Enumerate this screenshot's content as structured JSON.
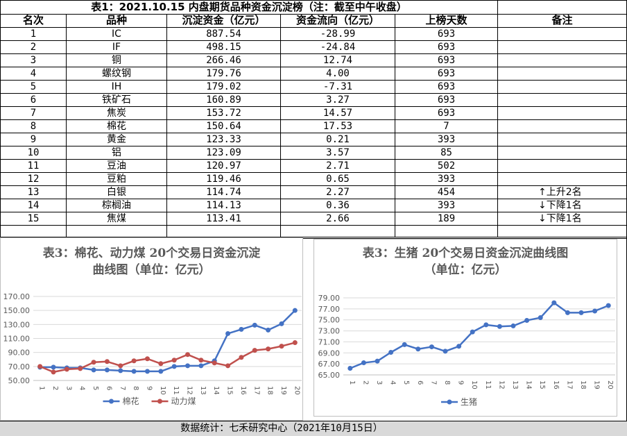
{
  "table": {
    "title": "表1：2021.10.15 内盘期货品种资金沉淀榜（注：截至中午收盘）",
    "headers": [
      "名次",
      "品种",
      "沉淀资金（亿元）",
      "资金流向（亿元）",
      "上榜天数",
      "备注"
    ],
    "rows": [
      {
        "rank": "1",
        "name": "IC",
        "fund": "887.54",
        "flow": "-28.99",
        "days": "693",
        "note": ""
      },
      {
        "rank": "2",
        "name": "IF",
        "fund": "498.15",
        "flow": "-24.84",
        "days": "693",
        "note": ""
      },
      {
        "rank": "3",
        "name": "铜",
        "fund": "266.46",
        "flow": "12.74",
        "days": "693",
        "note": ""
      },
      {
        "rank": "4",
        "name": "螺纹钢",
        "fund": "179.76",
        "flow": "4.00",
        "days": "693",
        "note": ""
      },
      {
        "rank": "5",
        "name": "IH",
        "fund": "179.02",
        "flow": "-7.31",
        "days": "693",
        "note": ""
      },
      {
        "rank": "6",
        "name": "铁矿石",
        "fund": "160.89",
        "flow": "3.27",
        "days": "693",
        "note": ""
      },
      {
        "rank": "7",
        "name": "焦炭",
        "fund": "153.72",
        "flow": "14.57",
        "days": "693",
        "note": ""
      },
      {
        "rank": "8",
        "name": "棉花",
        "fund": "150.64",
        "flow": "17.53",
        "days": "7",
        "note": ""
      },
      {
        "rank": "9",
        "name": "黄金",
        "fund": "123.33",
        "flow": "0.21",
        "days": "393",
        "note": ""
      },
      {
        "rank": "10",
        "name": "铝",
        "fund": "123.09",
        "flow": "3.57",
        "days": "85",
        "note": ""
      },
      {
        "rank": "11",
        "name": "豆油",
        "fund": "120.97",
        "flow": "2.71",
        "days": "502",
        "note": ""
      },
      {
        "rank": "12",
        "name": "豆粕",
        "fund": "119.46",
        "flow": "0.65",
        "days": "393",
        "note": ""
      },
      {
        "rank": "13",
        "name": "白银",
        "fund": "114.74",
        "flow": "2.27",
        "days": "454",
        "note": "上升2名",
        "arrow": "↑"
      },
      {
        "rank": "14",
        "name": "棕榈油",
        "fund": "114.13",
        "flow": "0.36",
        "days": "393",
        "note": "下降1名",
        "arrow": "↓"
      },
      {
        "rank": "15",
        "name": "焦煤",
        "fund": "113.41",
        "flow": "2.66",
        "days": "189",
        "note": "下降1名",
        "arrow": "↓"
      }
    ]
  },
  "chart_data": [
    {
      "type": "line",
      "title_line1": "表3：棉花、动力煤 20个交易日资金沉淀",
      "title_line2": "曲线图（单位：亿元）",
      "x": [
        "1",
        "2",
        "3",
        "4",
        "5",
        "6",
        "7",
        "8",
        "9",
        "10",
        "11",
        "12",
        "13",
        "14",
        "15",
        "16",
        "17",
        "18",
        "19",
        "20"
      ],
      "y_ticks": [
        "50.00",
        "70.00",
        "90.00",
        "110.00",
        "130.00",
        "150.00",
        "170.00"
      ],
      "ylim": [
        50,
        170
      ],
      "grid": true,
      "legend_position": "bottom",
      "series": [
        {
          "name": "棉花",
          "color": "#4472c4",
          "values": [
            69,
            69,
            68,
            68,
            65,
            65,
            64,
            63,
            63,
            63,
            70,
            71,
            71,
            78,
            117,
            123,
            129,
            122,
            131,
            150
          ]
        },
        {
          "name": "动力煤",
          "color": "#c0504d",
          "values": [
            70,
            62,
            66,
            67,
            76,
            77,
            71,
            78,
            81,
            74,
            79,
            87,
            79,
            75,
            71,
            83,
            93,
            95,
            99,
            104
          ]
        }
      ]
    },
    {
      "type": "line",
      "title_line1": "表3：生猪 20个交易日资金沉淀曲线图",
      "title_line2": "（单位：亿元）",
      "x": [
        "1",
        "2",
        "3",
        "4",
        "5",
        "6",
        "7",
        "8",
        "9",
        "10",
        "11",
        "12",
        "13",
        "14",
        "15",
        "16",
        "17",
        "18",
        "19",
        "20"
      ],
      "y_ticks": [
        "65.00",
        "67.00",
        "69.00",
        "71.00",
        "73.00",
        "75.00",
        "77.00",
        "79.00"
      ],
      "ylim": [
        65,
        79
      ],
      "grid": true,
      "legend_position": "bottom",
      "series": [
        {
          "name": "生猪",
          "color": "#4472c4",
          "values": [
            66.2,
            67.2,
            67.5,
            69.1,
            70.5,
            69.7,
            70.1,
            69.3,
            70.2,
            72.8,
            74.1,
            73.8,
            73.9,
            74.9,
            75.4,
            78.1,
            76.3,
            76.3,
            76.6,
            77.6
          ]
        }
      ]
    }
  ],
  "footer": "数据统计：七禾研究中心（2021年10月15日）"
}
